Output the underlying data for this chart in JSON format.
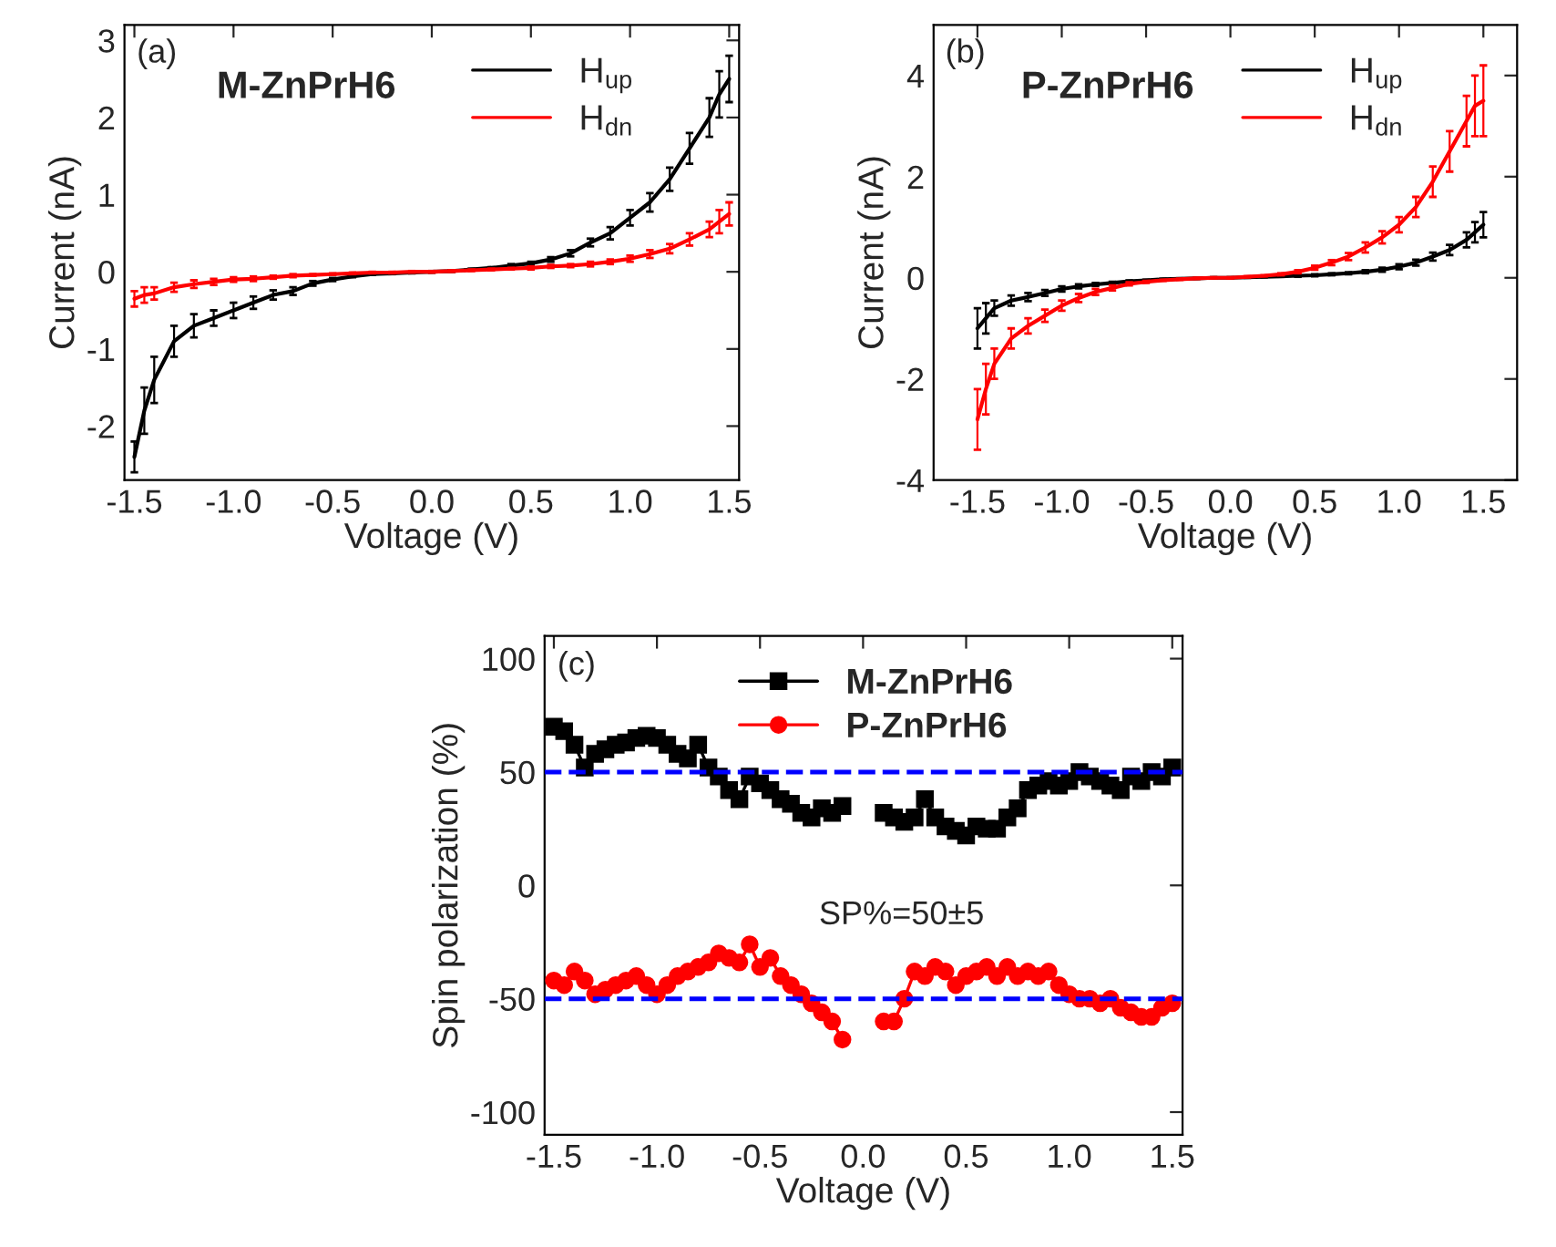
{
  "chart_data": [
    {
      "type": "line",
      "xlabel": "Voltage (V)",
      "ylabel": "Current (nA)",
      "annotations": [
        "(a)",
        "M-ZnPrH6"
      ],
      "legend": "top right",
      "grid": false,
      "marker": "none",
      "line_style": "solid",
      "xlim": [
        -1.55,
        1.55
      ],
      "ylim": [
        -2.7,
        3.2
      ],
      "xticks": [
        {
          "value": -1.5,
          "label": "-1.5"
        },
        {
          "value": -1.0,
          "label": "-1.0"
        },
        {
          "value": -0.5,
          "label": "-0.5"
        },
        {
          "value": 0.0,
          "label": "0.0"
        },
        {
          "value": 0.5,
          "label": "0.5"
        },
        {
          "value": 1.0,
          "label": "1.0"
        },
        {
          "value": 1.5,
          "label": "1.5"
        }
      ],
      "yticks": [
        -2,
        -1,
        0,
        1,
        2,
        3
      ],
      "x": [
        -1.5,
        -1.45,
        -1.4,
        -1.3,
        -1.2,
        -1.1,
        -1.0,
        -0.9,
        -0.8,
        -0.7,
        -0.6,
        -0.5,
        -0.4,
        -0.3,
        -0.2,
        -0.1,
        0.0,
        0.1,
        0.2,
        0.3,
        0.4,
        0.5,
        0.6,
        0.7,
        0.8,
        0.9,
        1.0,
        1.1,
        1.2,
        1.3,
        1.4,
        1.45,
        1.5
      ],
      "series": [
        {
          "name": "H$_{up}$",
          "color": "#000000",
          "values": [
            -2.4,
            -1.8,
            -1.4,
            -0.9,
            -0.7,
            -0.6,
            -0.5,
            -0.4,
            -0.3,
            -0.25,
            -0.15,
            -0.1,
            -0.06,
            -0.03,
            -0.02,
            -0.01,
            0,
            0.01,
            0.03,
            0.05,
            0.08,
            0.11,
            0.16,
            0.24,
            0.38,
            0.5,
            0.7,
            0.9,
            1.2,
            1.6,
            2.0,
            2.3,
            2.5
          ],
          "errors": [
            0.2,
            0.3,
            0.3,
            0.2,
            0.15,
            0.1,
            0.1,
            0.08,
            0.06,
            0.05,
            0.03,
            0.02,
            0.01,
            0.01,
            0.01,
            0.01,
            0.01,
            0.01,
            0.01,
            0.01,
            0.02,
            0.02,
            0.03,
            0.04,
            0.05,
            0.08,
            0.1,
            0.12,
            0.15,
            0.2,
            0.25,
            0.3,
            0.3
          ]
        },
        {
          "name": "H$_{dn}$",
          "color": "#ff0000",
          "values": [
            -0.35,
            -0.3,
            -0.28,
            -0.2,
            -0.16,
            -0.13,
            -0.1,
            -0.09,
            -0.07,
            -0.05,
            -0.04,
            -0.03,
            -0.02,
            -0.01,
            -0.01,
            0,
            0,
            0.01,
            0.02,
            0.03,
            0.04,
            0.05,
            0.07,
            0.08,
            0.1,
            0.13,
            0.17,
            0.23,
            0.3,
            0.42,
            0.55,
            0.65,
            0.75
          ],
          "errors": [
            0.1,
            0.1,
            0.08,
            0.06,
            0.05,
            0.04,
            0.03,
            0.03,
            0.02,
            0.02,
            0.01,
            0.01,
            0.01,
            0.01,
            0.01,
            0.01,
            0.01,
            0.01,
            0.01,
            0.01,
            0.01,
            0.02,
            0.02,
            0.02,
            0.03,
            0.03,
            0.04,
            0.05,
            0.06,
            0.08,
            0.1,
            0.15,
            0.15
          ]
        }
      ]
    },
    {
      "type": "line",
      "xlabel": "Voltage (V)",
      "ylabel": "Current (nA)",
      "annotations": [
        "(b)",
        "P-ZnPrH6"
      ],
      "legend": "top right",
      "grid": false,
      "marker": "none",
      "line_style": "solid",
      "xlim": [
        -1.76,
        1.7
      ],
      "ylim": [
        -4,
        5
      ],
      "xticks": [
        {
          "value": -1.5,
          "label": "-1.5"
        },
        {
          "value": -1.0,
          "label": "-1.0"
        },
        {
          "value": -0.5,
          "label": "-0.5"
        },
        {
          "value": 0.0,
          "label": "0.0"
        },
        {
          "value": 0.5,
          "label": "0.5"
        },
        {
          "value": 1.0,
          "label": "1.0"
        },
        {
          "value": 1.5,
          "label": "1.5"
        }
      ],
      "yticks": [
        -4,
        -2,
        0,
        2,
        4
      ],
      "x": [
        -1.5,
        -1.45,
        -1.4,
        -1.3,
        -1.2,
        -1.1,
        -1.0,
        -0.9,
        -0.8,
        -0.7,
        -0.6,
        -0.5,
        -0.4,
        -0.3,
        -0.2,
        -0.1,
        0.0,
        0.1,
        0.2,
        0.3,
        0.4,
        0.5,
        0.6,
        0.7,
        0.8,
        0.9,
        1.0,
        1.1,
        1.2,
        1.3,
        1.4,
        1.45,
        1.5
      ],
      "series": [
        {
          "name": "H$_{up}$",
          "color": "#000000",
          "values": [
            -1.0,
            -0.8,
            -0.6,
            -0.45,
            -0.38,
            -0.3,
            -0.22,
            -0.17,
            -0.13,
            -0.1,
            -0.07,
            -0.05,
            -0.03,
            -0.02,
            -0.01,
            0,
            0,
            0.01,
            0.02,
            0.03,
            0.04,
            0.05,
            0.07,
            0.09,
            0.12,
            0.16,
            0.22,
            0.3,
            0.42,
            0.55,
            0.75,
            0.9,
            1.05
          ],
          "errors": [
            0.4,
            0.3,
            0.15,
            0.1,
            0.08,
            0.06,
            0.05,
            0.04,
            0.03,
            0.02,
            0.02,
            0.01,
            0.01,
            0.01,
            0.01,
            0.01,
            0.01,
            0.01,
            0.01,
            0.01,
            0.02,
            0.02,
            0.02,
            0.02,
            0.03,
            0.04,
            0.05,
            0.06,
            0.08,
            0.1,
            0.15,
            0.2,
            0.25
          ]
        },
        {
          "name": "H$_{dn}$",
          "color": "#ff0000",
          "values": [
            -2.8,
            -2.2,
            -1.7,
            -1.2,
            -0.95,
            -0.75,
            -0.55,
            -0.4,
            -0.28,
            -0.2,
            -0.12,
            -0.08,
            -0.05,
            -0.03,
            -0.01,
            0,
            0,
            0.02,
            0.04,
            0.07,
            0.12,
            0.2,
            0.3,
            0.42,
            0.6,
            0.8,
            1.05,
            1.4,
            1.9,
            2.5,
            3.1,
            3.4,
            3.5
          ],
          "errors": [
            0.6,
            0.5,
            0.3,
            0.2,
            0.15,
            0.12,
            0.1,
            0.08,
            0.06,
            0.05,
            0.03,
            0.02,
            0.01,
            0.01,
            0.01,
            0.01,
            0.01,
            0.01,
            0.01,
            0.02,
            0.03,
            0.04,
            0.05,
            0.07,
            0.1,
            0.12,
            0.15,
            0.2,
            0.3,
            0.4,
            0.5,
            0.6,
            0.7
          ]
        }
      ]
    },
    {
      "type": "line",
      "xlabel": "Voltage (V)",
      "ylabel": "Spin polarization (%)",
      "annotations": [
        "(c)",
        "SP%=50±5"
      ],
      "legend": "top",
      "grid": false,
      "marker": "circle",
      "line_style": "solid",
      "xlim": [
        -1.545,
        1.55
      ],
      "ylim": [
        -110,
        110
      ],
      "xticks": [
        {
          "value": -1.5,
          "label": "-1.5"
        },
        {
          "value": -1.0,
          "label": "-1.0"
        },
        {
          "value": -0.5,
          "label": "-0.5"
        },
        {
          "value": 0.0,
          "label": "0.0"
        },
        {
          "value": 0.5,
          "label": "0.5"
        },
        {
          "value": 1.0,
          "label": "1.0"
        },
        {
          "value": 1.5,
          "label": "1.5"
        }
      ],
      "yticks": [
        -100,
        -50,
        0,
        50,
        100
      ],
      "ref_lines": [
        {
          "axis": "y",
          "value": 50,
          "color": "#0000ff",
          "line_style": "dashed"
        },
        {
          "axis": "y",
          "value": -50,
          "color": "#0000ff",
          "line_style": "dashed"
        }
      ],
      "x": [
        -1.5,
        -1.45,
        -1.4,
        -1.35,
        -1.3,
        -1.25,
        -1.2,
        -1.15,
        -1.1,
        -1.05,
        -1.0,
        -0.95,
        -0.9,
        -0.85,
        -0.8,
        -0.75,
        -0.7,
        -0.65,
        -0.6,
        -0.55,
        -0.5,
        -0.45,
        -0.4,
        -0.35,
        -0.3,
        -0.25,
        -0.2,
        -0.15,
        -0.1,
        0.0,
        0.1,
        0.15,
        0.2,
        0.25,
        0.3,
        0.35,
        0.4,
        0.45,
        0.5,
        0.55,
        0.6,
        0.65,
        0.7,
        0.75,
        0.8,
        0.85,
        0.9,
        0.95,
        1.0,
        1.05,
        1.1,
        1.15,
        1.2,
        1.25,
        1.3,
        1.35,
        1.4,
        1.45,
        1.5
      ],
      "series": [
        {
          "name": "M-ZnPrH6",
          "color": "#000000",
          "marker": "square",
          "values": [
            70,
            68,
            62,
            52,
            58,
            60,
            62,
            63,
            65,
            66,
            65,
            62,
            58,
            56,
            62,
            52,
            48,
            42,
            38,
            48,
            45,
            42,
            38,
            36,
            32,
            30,
            34,
            32,
            35,
            null,
            32,
            30,
            28,
            30,
            38,
            30,
            26,
            24,
            22,
            26,
            25,
            25,
            30,
            34,
            42,
            44,
            46,
            44,
            46,
            50,
            48,
            46,
            44,
            42,
            48,
            46,
            50,
            48,
            52
          ]
        },
        {
          "name": "P-ZnPrH6",
          "color": "#ff0000",
          "marker": "circle",
          "values": [
            -42,
            -44,
            -38,
            -42,
            -48,
            -46,
            -44,
            -42,
            -40,
            -44,
            -48,
            -44,
            -40,
            -38,
            -36,
            -34,
            -30,
            -32,
            -34,
            -26,
            -36,
            -32,
            -40,
            -44,
            -48,
            -52,
            -56,
            -60,
            -68,
            null,
            -60,
            -60,
            -50,
            -38,
            -40,
            -36,
            -38,
            -44,
            -40,
            -38,
            -36,
            -40,
            -36,
            -40,
            -38,
            -40,
            -38,
            -44,
            -48,
            -50,
            -50,
            -52,
            -50,
            -54,
            -56,
            -58,
            -58,
            -54,
            -52
          ]
        }
      ]
    }
  ]
}
